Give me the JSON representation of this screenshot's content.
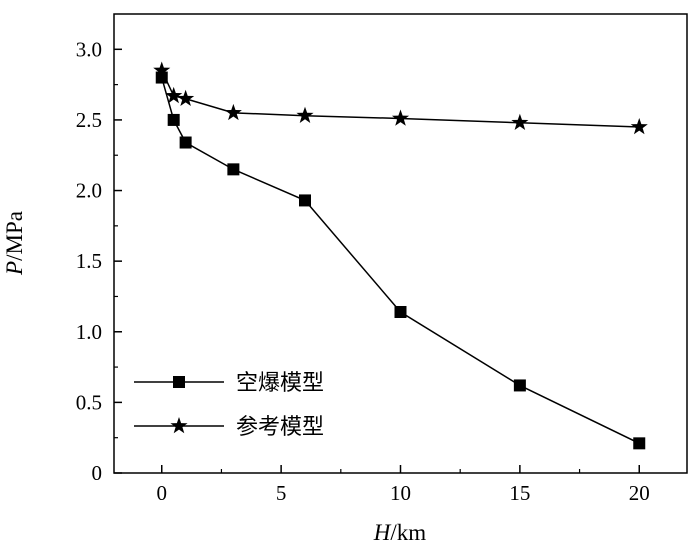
{
  "chart_data": {
    "type": "line",
    "x": [
      0,
      0.5,
      1,
      3,
      6,
      10,
      15,
      20
    ],
    "series": [
      {
        "name": "空爆模型",
        "marker": "square",
        "values": [
          2.8,
          2.5,
          2.34,
          2.15,
          1.93,
          1.14,
          0.62,
          0.21
        ]
      },
      {
        "name": "参考模型",
        "marker": "star",
        "values": [
          2.85,
          2.67,
          2.65,
          2.55,
          2.53,
          2.51,
          2.48,
          2.45
        ]
      }
    ],
    "xlabel": {
      "var": "H",
      "unit": "/km"
    },
    "ylabel": {
      "var": "P",
      "unit": "/MPa"
    },
    "xlim": [
      -2,
      22
    ],
    "ylim": [
      0,
      3.25
    ],
    "xticks": [
      0,
      5,
      10,
      15,
      20
    ],
    "xtick_labels": [
      "0",
      "5",
      "10",
      "15",
      "20"
    ],
    "yticks": [
      0,
      0.5,
      1.0,
      1.5,
      2.0,
      2.5,
      3.0
    ],
    "ytick_labels": [
      "0",
      "0.5",
      "1.0",
      "1.5",
      "2.0",
      "2.5",
      "3.0"
    ],
    "grid": false,
    "legend_position": "bottom-left",
    "colors": {
      "line": "#000000",
      "marker": "#000000"
    }
  }
}
